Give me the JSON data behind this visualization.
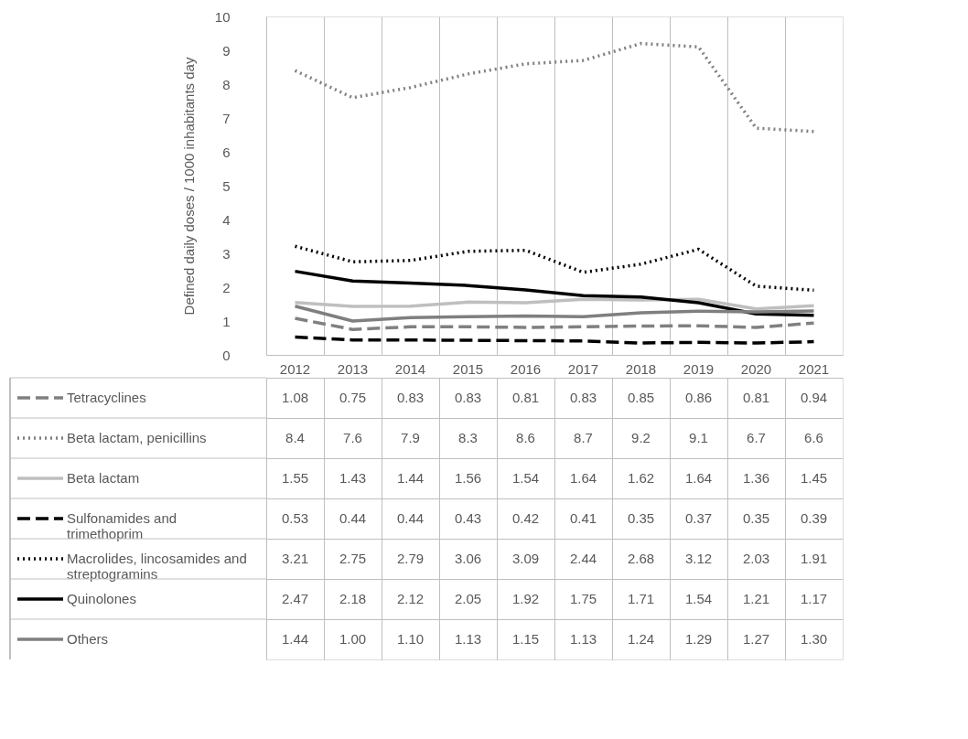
{
  "chart_data": {
    "type": "line",
    "ylabel": "Defined daily doses  / 1000 inhabitants day",
    "categories": [
      "2012",
      "2013",
      "2014",
      "2015",
      "2016",
      "2017",
      "2018",
      "2019",
      "2020",
      "2021"
    ],
    "ylim": [
      0,
      10
    ],
    "yticks": [
      0,
      1,
      2,
      3,
      4,
      5,
      6,
      7,
      8,
      9,
      10
    ],
    "grid": "x",
    "legend": "bottom",
    "series": [
      {
        "name": "Tetracyclines",
        "color": "#808080",
        "line_style": "dashed",
        "values": [
          1.08,
          0.75,
          0.83,
          0.83,
          0.81,
          0.83,
          0.85,
          0.86,
          0.81,
          0.94
        ],
        "value_labels": [
          "1.08",
          "0.75",
          "0.83",
          "0.83",
          "0.81",
          "0.83",
          "0.85",
          "0.86",
          "0.81",
          "0.94"
        ]
      },
      {
        "name": "Beta lactam, penicillins",
        "color": "#808080",
        "line_style": "dotted",
        "values": [
          8.4,
          7.6,
          7.9,
          8.3,
          8.6,
          8.7,
          9.2,
          9.1,
          6.7,
          6.6
        ],
        "value_labels": [
          "8.4",
          "7.6",
          "7.9",
          "8.3",
          "8.6",
          "8.7",
          "9.2",
          "9.1",
          "6.7",
          "6.6"
        ]
      },
      {
        "name": "Beta lactam",
        "color": "#bfbfbf",
        "line_style": "solid",
        "values": [
          1.55,
          1.43,
          1.44,
          1.56,
          1.54,
          1.64,
          1.62,
          1.64,
          1.36,
          1.45
        ],
        "value_labels": [
          "1.55",
          "1.43",
          "1.44",
          "1.56",
          "1.54",
          "1.64",
          "1.62",
          "1.64",
          "1.36",
          "1.45"
        ]
      },
      {
        "name": "Sulfonamides and trimethoprim",
        "color": "#000000",
        "line_style": "dashed",
        "values": [
          0.53,
          0.44,
          0.44,
          0.43,
          0.42,
          0.41,
          0.35,
          0.37,
          0.35,
          0.39
        ],
        "value_labels": [
          "0.53",
          "0.44",
          "0.44",
          "0.43",
          "0.42",
          "0.41",
          "0.35",
          "0.37",
          "0.35",
          "0.39"
        ]
      },
      {
        "name": "Macrolides, lincosamides and streptogramins",
        "color": "#000000",
        "line_style": "dotted",
        "values": [
          3.21,
          2.75,
          2.79,
          3.06,
          3.09,
          2.44,
          2.68,
          3.12,
          2.03,
          1.91
        ],
        "value_labels": [
          "3.21",
          "2.75",
          "2.79",
          "3.06",
          "3.09",
          "2.44",
          "2.68",
          "3.12",
          "2.03",
          "1.91"
        ]
      },
      {
        "name": "Quinolones",
        "color": "#000000",
        "line_style": "solid",
        "values": [
          2.47,
          2.18,
          2.12,
          2.05,
          1.92,
          1.75,
          1.71,
          1.54,
          1.21,
          1.17
        ],
        "value_labels": [
          "2.47",
          "2.18",
          "2.12",
          "2.05",
          "1.92",
          "1.75",
          "1.71",
          "1.54",
          "1.21",
          "1.17"
        ]
      },
      {
        "name": "Others",
        "color": "#7f7f7f",
        "line_style": "solid",
        "values": [
          1.44,
          1.0,
          1.1,
          1.13,
          1.15,
          1.13,
          1.24,
          1.29,
          1.27,
          1.3
        ],
        "value_labels": [
          "1.44",
          "1.00",
          "1.10",
          "1.13",
          "1.15",
          "1.13",
          "1.24",
          "1.29",
          "1.27",
          "1.30"
        ]
      }
    ]
  }
}
